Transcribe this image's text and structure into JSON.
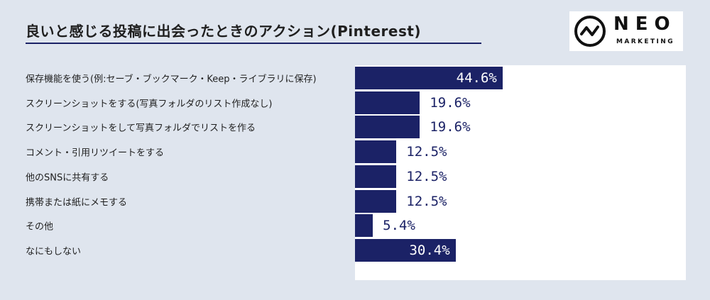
{
  "header": {
    "title": "良いと感じる投稿に出会ったときのアクション(Pinterest)"
  },
  "logo": {
    "name": "NEO",
    "subtitle": "MARKETING"
  },
  "colors": {
    "bar": "#1b2266",
    "background": "#dfe5ee",
    "panel": "#ffffff"
  },
  "chart_data": {
    "type": "bar",
    "orientation": "horizontal",
    "categories": [
      "保存機能を使う(例:セーブ・ブックマーク・Keep・ライブラリに保存)",
      "スクリーンショットをする(写真フォルダのリスト作成なし)",
      "スクリーンショットをして写真フォルダでリストを作る",
      "コメント・引用リツイートをする",
      "他のSNSに共有する",
      "携帯または紙にメモする",
      "その他",
      "なにもしない"
    ],
    "values": [
      44.6,
      19.6,
      19.6,
      12.5,
      12.5,
      12.5,
      5.4,
      30.4
    ],
    "value_labels": [
      "44.6%",
      "19.6%",
      "19.6%",
      "12.5%",
      "12.5%",
      "12.5%",
      "5.4%",
      "30.4%"
    ],
    "title": "良いと感じる投稿に出会ったときのアクション(Pinterest)",
    "xlim": [
      0,
      100
    ],
    "grid": false
  }
}
